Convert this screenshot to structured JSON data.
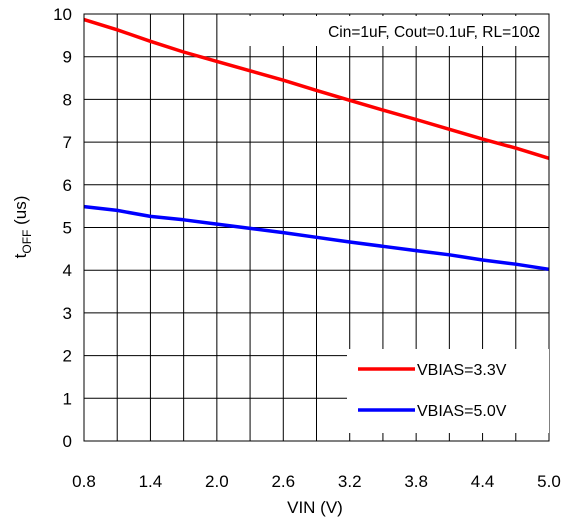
{
  "chart_data": {
    "type": "line",
    "title": "",
    "annotation": "Cin=1uF, Cout=0.1uF, RL=10Ω",
    "xlabel": "VIN (V)",
    "ylabel": {
      "main": "t",
      "subscript": "OFF",
      "rest": " (us)"
    },
    "xlim": [
      0.8,
      5.0
    ],
    "ylim": [
      0,
      10
    ],
    "xticks": [
      "0.8",
      "1.4",
      "2.0",
      "2.6",
      "3.2",
      "3.8",
      "4.4",
      "5.0"
    ],
    "yticks": [
      "0",
      "1",
      "2",
      "3",
      "4",
      "5",
      "6",
      "7",
      "8",
      "9",
      "10"
    ],
    "grid": true,
    "legend_position": "bottom-right",
    "series": [
      {
        "name": "VBIAS=3.3V",
        "color": "#ff0000",
        "x": [
          0.8,
          1.1,
          1.4,
          1.7,
          2.0,
          2.3,
          2.6,
          2.9,
          3.2,
          3.5,
          3.8,
          4.1,
          4.4,
          4.7,
          5.0
        ],
        "y": [
          9.87,
          9.63,
          9.36,
          9.11,
          8.89,
          8.67,
          8.45,
          8.21,
          7.98,
          7.75,
          7.53,
          7.3,
          7.07,
          6.86,
          6.62
        ]
      },
      {
        "name": "VBIAS=5.0V",
        "color": "#0000ff",
        "x": [
          0.8,
          1.1,
          1.4,
          1.7,
          2.0,
          2.3,
          2.6,
          2.9,
          3.2,
          3.5,
          3.8,
          4.1,
          4.4,
          4.7,
          5.0
        ],
        "y": [
          5.49,
          5.4,
          5.26,
          5.18,
          5.08,
          4.98,
          4.88,
          4.77,
          4.66,
          4.56,
          4.46,
          4.36,
          4.24,
          4.14,
          4.02
        ]
      }
    ]
  }
}
